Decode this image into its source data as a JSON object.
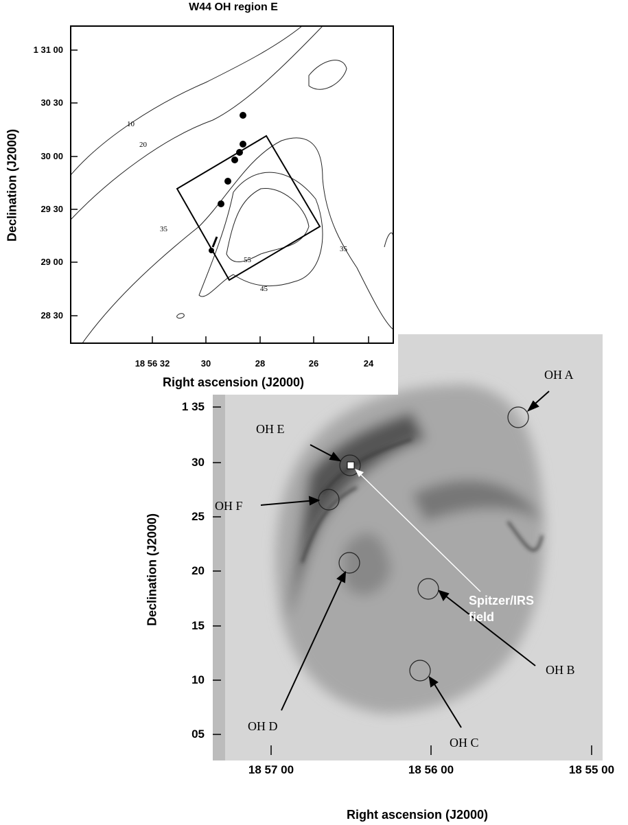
{
  "top_panel": {
    "title": "W44 OH region E",
    "y_label": "Declination (J2000)",
    "x_label": "Right ascension (J2000)",
    "y_ticks": [
      "1 31 00",
      "30 30",
      "30 00",
      "29 30",
      "29 00",
      "28 30"
    ],
    "x_ticks": [
      "18 56 32",
      "30",
      "28",
      "26",
      "24"
    ],
    "contour_labels": [
      "10",
      "20",
      "35",
      "35",
      "55",
      "45"
    ]
  },
  "bottom_panel": {
    "y_label": "Declination (J2000)",
    "x_label": "Right ascension (J2000)",
    "y_ticks": [
      "1 35",
      "30",
      "25",
      "20",
      "15",
      "10",
      "05"
    ],
    "x_ticks": [
      "18 57 00",
      "18 56 00",
      "18 55 00"
    ],
    "annotations": [
      "OH A",
      "OH E",
      "OH F",
      "OH D",
      "OH B",
      "OH C",
      "Spitzer/IRS field"
    ]
  }
}
